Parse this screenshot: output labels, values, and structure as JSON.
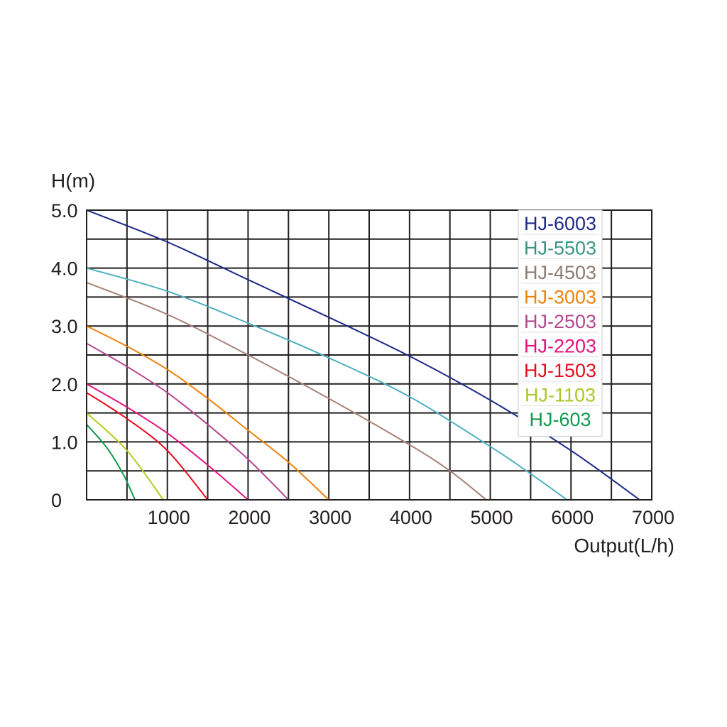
{
  "chart_data": {
    "type": "line",
    "ylabel": "H(m)",
    "xlabel": "Output(L/h)",
    "xlim": [
      0,
      7000
    ],
    "ylim": [
      0,
      5.0
    ],
    "grid": true,
    "legend_position": "top-right",
    "x_ticks": [
      {
        "value": 1000,
        "label": "1000"
      },
      {
        "value": 2000,
        "label": "2000"
      },
      {
        "value": 3000,
        "label": "3000"
      },
      {
        "value": 4000,
        "label": "4000"
      },
      {
        "value": 5000,
        "label": "5000"
      },
      {
        "value": 6000,
        "label": "6000"
      },
      {
        "value": 7000,
        "label": "7000"
      }
    ],
    "y_ticks": [
      {
        "value": 0,
        "label": "0"
      },
      {
        "value": 1.0,
        "label": "1.0"
      },
      {
        "value": 2.0,
        "label": "2.0"
      },
      {
        "value": 3.0,
        "label": "3.0"
      },
      {
        "value": 4.0,
        "label": "4.0"
      },
      {
        "value": 5.0,
        "label": "5.0"
      }
    ],
    "x_grid_step": 500,
    "y_grid_step": 0.5,
    "series": [
      {
        "name": "HJ-6003",
        "color": "#1e2a86",
        "line_color": "#1e2a86",
        "x": [
          0,
          1000,
          2000,
          3000,
          4000,
          5000,
          6000,
          6850
        ],
        "y": [
          5.0,
          4.45,
          3.8,
          3.15,
          2.48,
          1.72,
          0.85,
          0
        ]
      },
      {
        "name": "HJ-5503",
        "color": "#3a9482",
        "line_color": "#4fb0c0",
        "x": [
          0,
          1000,
          2000,
          3000,
          4000,
          5000,
          5500,
          5950
        ],
        "y": [
          4.0,
          3.6,
          3.05,
          2.45,
          1.78,
          0.92,
          0.45,
          0
        ]
      },
      {
        "name": "HJ-4503",
        "color": "#8c7b72",
        "line_color": "#a88478",
        "x": [
          0,
          1000,
          2000,
          3000,
          4000,
          4500,
          4950
        ],
        "y": [
          3.75,
          3.2,
          2.5,
          1.75,
          0.95,
          0.5,
          0
        ]
      },
      {
        "name": "HJ-3003",
        "color": "#f0820a",
        "line_color": "#f0820a",
        "x": [
          0,
          500,
          1000,
          1500,
          2000,
          2500,
          3000
        ],
        "y": [
          3.0,
          2.65,
          2.25,
          1.75,
          1.2,
          0.65,
          0
        ]
      },
      {
        "name": "HJ-2503",
        "color": "#b3488e",
        "line_color": "#b3488e",
        "x": [
          0,
          500,
          1000,
          1500,
          2000,
          2500
        ],
        "y": [
          2.7,
          2.3,
          1.85,
          1.3,
          0.7,
          0
        ]
      },
      {
        "name": "HJ-2203",
        "color": "#e4117c",
        "line_color": "#e4117c",
        "x": [
          0,
          500,
          1000,
          1500,
          2000
        ],
        "y": [
          2.0,
          1.6,
          1.15,
          0.6,
          0
        ]
      },
      {
        "name": "HJ-1503",
        "color": "#e60d1e",
        "line_color": "#e60d1e",
        "x": [
          0,
          500,
          1000,
          1500
        ],
        "y": [
          1.85,
          1.4,
          0.85,
          0
        ]
      },
      {
        "name": "HJ-1103",
        "color": "#a9c72a",
        "line_color": "#b5cc1e",
        "x": [
          0,
          500,
          950
        ],
        "y": [
          1.5,
          0.85,
          0
        ]
      },
      {
        "name": "HJ-603",
        "color": "#109a4e",
        "line_color": "#109a4e",
        "x": [
          0,
          250,
          450,
          600
        ],
        "y": [
          1.3,
          0.9,
          0.45,
          0
        ]
      }
    ]
  }
}
